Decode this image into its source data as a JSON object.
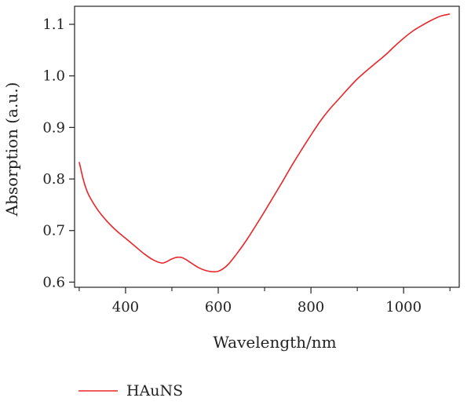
{
  "chart_data": {
    "type": "line",
    "xlabel": "Wavelength/nm",
    "ylabel": "Absorption (a.u.)",
    "xlim": [
      290,
      1120
    ],
    "ylim": [
      0.59,
      1.135
    ],
    "x_ticks": [
      400,
      600,
      800,
      1000
    ],
    "x_ticks_labels": [
      "400",
      "600",
      "800",
      "1000"
    ],
    "x_minor_ticks": [
      300,
      500,
      700,
      900,
      1100
    ],
    "y_ticks": [
      0.6,
      0.7,
      0.8,
      0.9,
      1.0,
      1.1
    ],
    "y_ticks_labels": [
      "0.6",
      "0.7",
      "0.8",
      "0.9",
      "1.0",
      "1.1"
    ],
    "grid": false,
    "legend_position": "bottom-left",
    "series": [
      {
        "name": "HAuNS",
        "color": "#e8262b",
        "x": [
          300,
          310,
          320,
          340,
          360,
          380,
          400,
          420,
          440,
          460,
          480,
          500,
          510,
          520,
          530,
          540,
          560,
          580,
          600,
          620,
          640,
          660,
          680,
          700,
          720,
          740,
          760,
          780,
          800,
          820,
          840,
          860,
          880,
          900,
          920,
          940,
          960,
          980,
          1000,
          1020,
          1040,
          1060,
          1080,
          1100
        ],
        "y": [
          0.833,
          0.795,
          0.77,
          0.74,
          0.718,
          0.7,
          0.685,
          0.67,
          0.655,
          0.643,
          0.637,
          0.645,
          0.648,
          0.648,
          0.644,
          0.638,
          0.627,
          0.621,
          0.621,
          0.633,
          0.655,
          0.68,
          0.708,
          0.737,
          0.767,
          0.797,
          0.828,
          0.857,
          0.885,
          0.912,
          0.935,
          0.955,
          0.975,
          0.994,
          1.01,
          1.025,
          1.04,
          1.057,
          1.073,
          1.087,
          1.098,
          1.108,
          1.116,
          1.12
        ]
      }
    ]
  }
}
